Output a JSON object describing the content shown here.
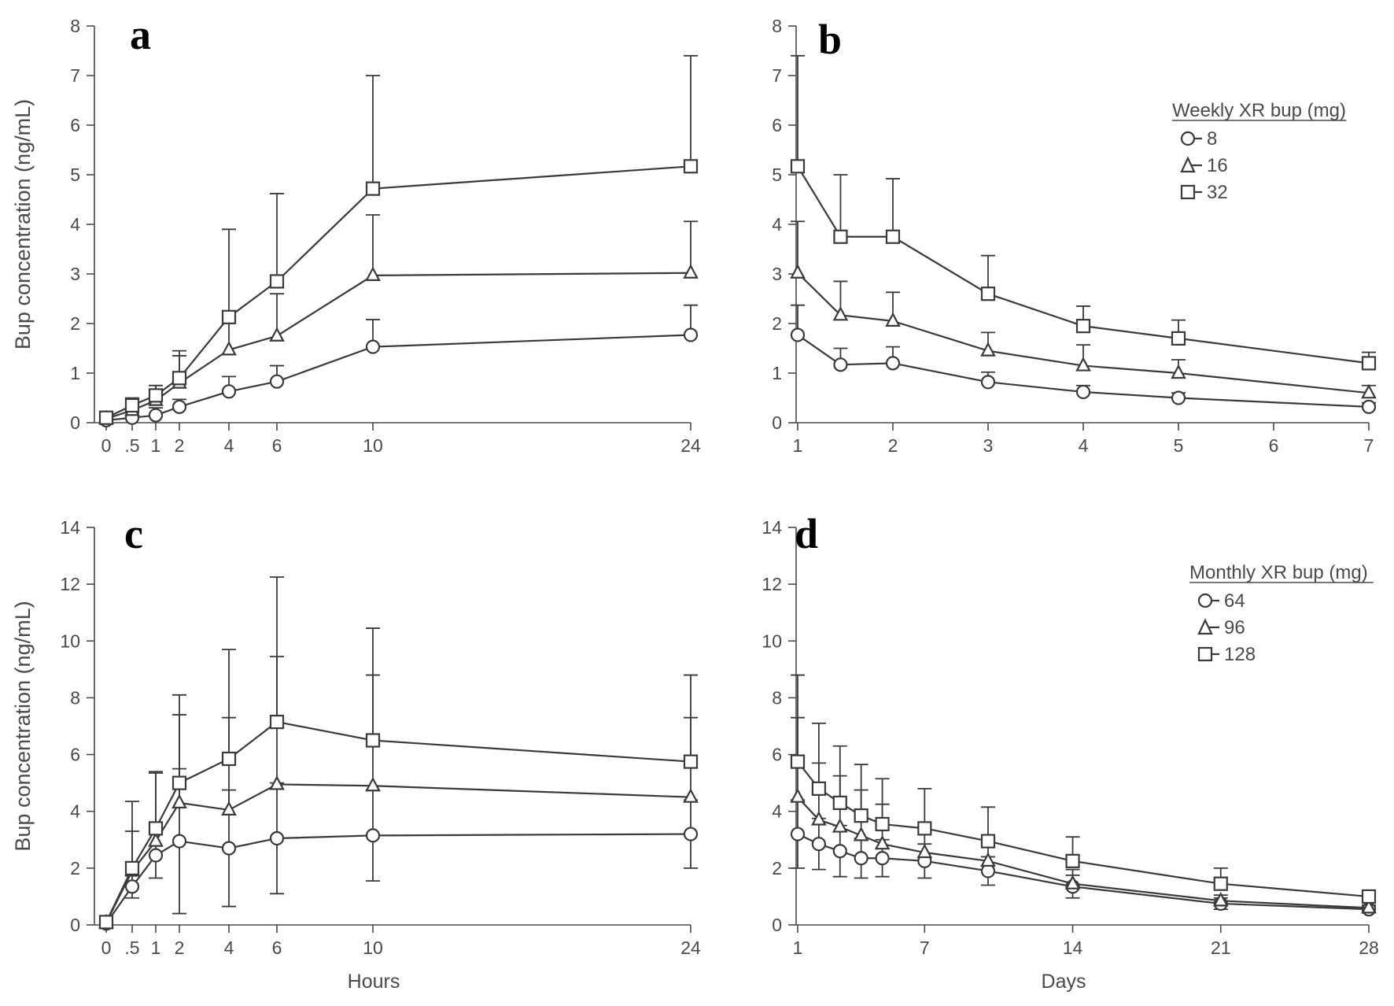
{
  "chart_data": [
    {
      "panel": "a",
      "type": "line",
      "ylabel": "Bup concentration (ng/mL)",
      "xlabel": "",
      "x_ticks": [
        0,
        0.5,
        1,
        2,
        4,
        6,
        10,
        24
      ],
      "x_tick_labels": [
        "0",
        ".5",
        "1",
        "2",
        "4",
        "6",
        "10",
        "24"
      ],
      "xlim": [
        0,
        24
      ],
      "y_ticks": [
        0,
        1,
        2,
        3,
        4,
        5,
        6,
        7,
        8
      ],
      "ylim": [
        0,
        8
      ],
      "series": [
        {
          "marker": "circle",
          "x": [
            0,
            0.5,
            1,
            2,
            4,
            6,
            10,
            24
          ],
          "values": [
            0.05,
            0.1,
            0.15,
            0.32,
            0.63,
            0.83,
            1.53,
            1.77
          ],
          "err": [
            0.05,
            0.1,
            0.15,
            0.15,
            0.3,
            0.32,
            0.55,
            0.6
          ]
        },
        {
          "marker": "triangle",
          "x": [
            0,
            0.5,
            1,
            2,
            4,
            6,
            10,
            24
          ],
          "values": [
            0.08,
            0.25,
            0.45,
            0.8,
            1.47,
            1.75,
            2.97,
            3.02
          ],
          "err": [
            0.1,
            0.2,
            0.3,
            0.55,
            0.75,
            0.85,
            1.22,
            1.04
          ]
        },
        {
          "marker": "square",
          "x": [
            0,
            0.5,
            1,
            2,
            4,
            6,
            10,
            24
          ],
          "values": [
            0.1,
            0.35,
            0.55,
            0.9,
            2.13,
            2.85,
            4.72,
            5.17
          ],
          "err": [
            0.1,
            0.15,
            0.2,
            0.55,
            1.77,
            1.77,
            2.28,
            2.23
          ]
        }
      ]
    },
    {
      "panel": "b",
      "type": "line",
      "xlabel": "",
      "x_ticks": [
        1,
        2,
        3,
        4,
        5,
        6,
        7
      ],
      "x_tick_labels": [
        "1",
        "2",
        "3",
        "4",
        "5",
        "6",
        "7"
      ],
      "xlim": [
        1,
        7
      ],
      "y_ticks": [
        0,
        1,
        2,
        3,
        4,
        5,
        6,
        7,
        8
      ],
      "ylim": [
        0,
        8
      ],
      "legend": {
        "title": "Weekly XR bup (mg)",
        "entries": [
          "8",
          "16",
          "32"
        ],
        "placement": "top-right"
      },
      "series": [
        {
          "name": "8",
          "marker": "circle",
          "x": [
            1,
            1.45,
            2,
            3,
            4,
            5,
            7
          ],
          "values": [
            1.77,
            1.17,
            1.2,
            0.82,
            0.62,
            0.5,
            0.32
          ],
          "err": [
            0.6,
            0.33,
            0.33,
            0.2,
            0.13,
            0.1,
            0.08
          ]
        },
        {
          "name": "16",
          "marker": "triangle",
          "x": [
            1,
            1.45,
            2,
            3,
            4,
            5,
            7
          ],
          "values": [
            3.02,
            2.17,
            2.05,
            1.45,
            1.15,
            1.0,
            0.6
          ],
          "err": [
            1.04,
            0.68,
            0.58,
            0.37,
            0.42,
            0.27,
            0.15
          ]
        },
        {
          "name": "32",
          "marker": "square",
          "x": [
            1,
            1.45,
            2,
            3,
            4,
            5,
            7
          ],
          "values": [
            5.17,
            3.75,
            3.75,
            2.6,
            1.95,
            1.7,
            1.2
          ],
          "err": [
            2.23,
            1.25,
            1.17,
            0.77,
            0.4,
            0.37,
            0.22
          ]
        }
      ]
    },
    {
      "panel": "c",
      "type": "line",
      "ylabel": "Bup concentration (ng/mL)",
      "xlabel": "Hours",
      "x_ticks": [
        0,
        0.5,
        1,
        2,
        4,
        6,
        10,
        24
      ],
      "x_tick_labels": [
        "0",
        ".5",
        "1",
        "2",
        "4",
        "6",
        "10",
        "24"
      ],
      "xlim": [
        0,
        24
      ],
      "y_ticks": [
        0,
        2,
        4,
        6,
        8,
        10,
        12,
        14
      ],
      "ylim": [
        0,
        14
      ],
      "series": [
        {
          "marker": "circle",
          "x": [
            0,
            0.5,
            1,
            2,
            4,
            6,
            10,
            24
          ],
          "values": [
            0.05,
            1.35,
            2.45,
            2.95,
            2.7,
            3.05,
            3.15,
            3.2
          ],
          "err": [
            0.05,
            0.4,
            0.8,
            2.55,
            2.05,
            1.95,
            1.6,
            1.2
          ]
        },
        {
          "marker": "triangle",
          "x": [
            0,
            0.5,
            1,
            2,
            4,
            6,
            10,
            24
          ],
          "values": [
            0.08,
            1.9,
            2.95,
            4.3,
            4.05,
            4.95,
            4.9,
            4.5
          ],
          "err": [
            0.1,
            1.4,
            2.45,
            3.1,
            3.25,
            4.5,
            3.9,
            2.8
          ]
        },
        {
          "marker": "square",
          "x": [
            0,
            0.5,
            1,
            2,
            4,
            6,
            10,
            24
          ],
          "values": [
            0.1,
            2.0,
            3.4,
            5.0,
            5.85,
            7.15,
            6.5,
            5.75
          ],
          "err": [
            0.1,
            2.35,
            1.95,
            3.1,
            3.85,
            5.1,
            3.95,
            3.05
          ]
        }
      ]
    },
    {
      "panel": "d",
      "type": "line",
      "xlabel": "Days",
      "x_ticks": [
        1,
        7,
        14,
        21,
        28
      ],
      "x_tick_labels": [
        "1",
        "7",
        "14",
        "21",
        "28"
      ],
      "xlim": [
        1,
        28
      ],
      "y_ticks": [
        0,
        2,
        4,
        6,
        8,
        10,
        12,
        14
      ],
      "ylim": [
        0,
        14
      ],
      "legend": {
        "title": "Monthly XR bup (mg)",
        "entries": [
          "64",
          "96",
          "128"
        ],
        "placement": "top-right"
      },
      "series": [
        {
          "name": "64",
          "marker": "circle",
          "x": [
            1,
            2,
            3,
            4,
            5,
            7,
            10,
            14,
            21,
            28
          ],
          "values": [
            3.2,
            2.85,
            2.6,
            2.35,
            2.35,
            2.25,
            1.9,
            1.35,
            0.75,
            0.55
          ],
          "err": [
            1.2,
            0.9,
            0.9,
            0.7,
            0.65,
            0.6,
            0.5,
            0.4,
            0.2,
            0.1
          ]
        },
        {
          "name": "96",
          "marker": "triangle",
          "x": [
            1,
            2,
            3,
            4,
            5,
            7,
            10,
            14,
            21,
            28
          ],
          "values": [
            4.5,
            3.7,
            3.45,
            3.15,
            2.85,
            2.55,
            2.25,
            1.45,
            0.85,
            0.6
          ],
          "err": [
            2.8,
            2.0,
            1.8,
            1.6,
            1.4,
            0.9,
            0.8,
            0.5,
            0.2,
            0.1
          ]
        },
        {
          "name": "128",
          "marker": "square",
          "x": [
            1,
            2,
            3,
            4,
            5,
            7,
            10,
            14,
            21,
            28
          ],
          "values": [
            5.75,
            4.8,
            4.3,
            3.85,
            3.55,
            3.4,
            2.95,
            2.25,
            1.45,
            1.0
          ],
          "err": [
            3.05,
            2.3,
            2.0,
            1.8,
            1.6,
            1.4,
            1.2,
            0.85,
            0.55,
            0.2
          ]
        }
      ]
    }
  ]
}
